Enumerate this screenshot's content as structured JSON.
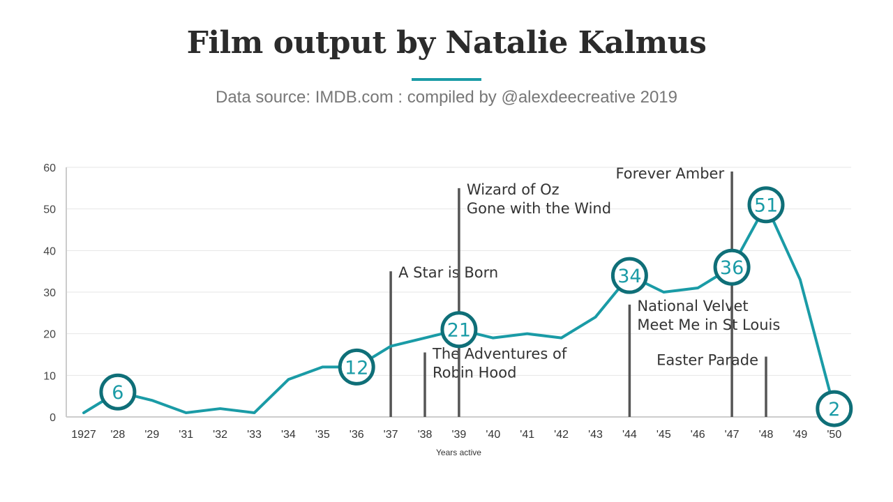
{
  "header": {
    "title": "Film output by Natalie Kalmus",
    "subtitle": "Data source: IMDB.com : compiled by @alexdeecreative 2019"
  },
  "colors": {
    "line": "#1a9ba6",
    "marker_ring": "#0f6f78",
    "annotation_bar": "#555555",
    "grid": "#e6e6e6"
  },
  "chart_data": {
    "type": "line",
    "xlabel": "Years active",
    "ylabel": "",
    "ylim": [
      0,
      60
    ],
    "yticks": [
      0,
      10,
      20,
      30,
      40,
      50,
      60
    ],
    "grid": true,
    "categories": [
      "1927",
      "'28",
      "'29",
      "'31",
      "'32",
      "'33",
      "'34",
      "'35",
      "'36",
      "'37",
      "'38",
      "'39",
      "'40",
      "'41",
      "'42",
      "'43",
      "'44",
      "'45",
      "'46",
      "'47",
      "'48",
      "'49",
      "'50"
    ],
    "series": [
      {
        "values": [
          1,
          6,
          4,
          1,
          2,
          1,
          9,
          12,
          12,
          17,
          19,
          21,
          19,
          20,
          19,
          24,
          34,
          30,
          31,
          36,
          51,
          33,
          2
        ]
      }
    ],
    "highlighted_points": [
      {
        "category": "'28",
        "label": "6"
      },
      {
        "category": "'36",
        "label": "12"
      },
      {
        "category": "'39",
        "label": "21"
      },
      {
        "category": "'44",
        "label": "34"
      },
      {
        "category": "'47",
        "label": "36"
      },
      {
        "category": "'48",
        "label": "51"
      },
      {
        "category": "'50",
        "label": "2"
      }
    ],
    "annotations": [
      {
        "category": "'37",
        "bar_top": 35,
        "lines": [
          "A Star is Born"
        ],
        "text_y": 33.5,
        "anchor": "start"
      },
      {
        "category": "'38",
        "bar_top": 15.5,
        "lines": [
          "The Adventures of",
          "Robin Hood"
        ],
        "text_y": 14,
        "anchor": "start"
      },
      {
        "category": "'39",
        "bar_top": 55,
        "lines": [
          "Wizard of Oz",
          "Gone with the Wind"
        ],
        "text_y": 53.5,
        "anchor": "start"
      },
      {
        "category": "'44",
        "bar_top": 27,
        "lines": [
          "National Velvet",
          "Meet Me in St Louis"
        ],
        "text_y": 25.5,
        "anchor": "start"
      },
      {
        "category": "'47",
        "bar_top": 59,
        "lines": [
          "Forever Amber"
        ],
        "text_y": 57.3,
        "anchor": "end"
      },
      {
        "category": "'48",
        "bar_top": 14.5,
        "lines": [
          "Easter Parade"
        ],
        "text_y": 12.5,
        "anchor": "end"
      }
    ]
  }
}
